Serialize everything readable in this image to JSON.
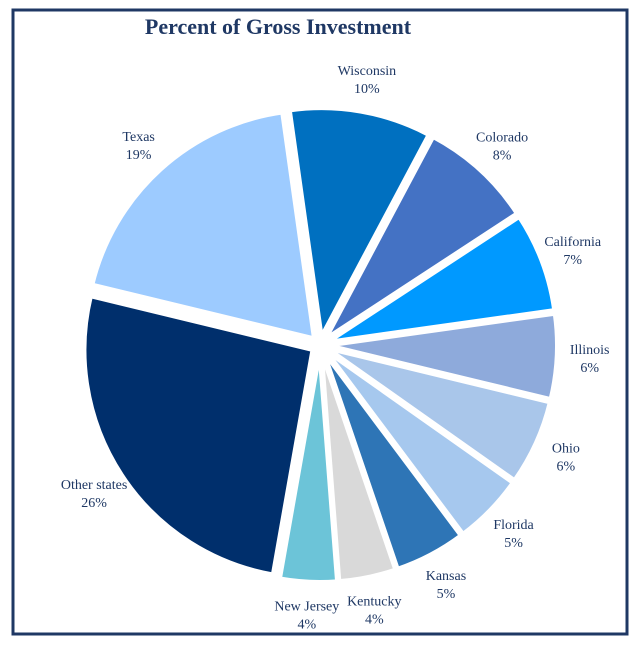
{
  "chart_data": {
    "type": "pie",
    "title": "Percent of Gross Investment",
    "categories": [
      "Wisconsin",
      "Colorado",
      "California",
      "Illinois",
      "Ohio",
      "Florida",
      "Kansas",
      "Kentucky",
      "New Jersey",
      "Other states",
      "Texas"
    ],
    "values": [
      10,
      8,
      7,
      6,
      6,
      5,
      5,
      4,
      4,
      26,
      19
    ],
    "value_labels": [
      "10%",
      "8%",
      "7%",
      "6%",
      "6%",
      "5%",
      "5%",
      "4%",
      "4%",
      "26%",
      "19%"
    ],
    "colors": [
      "#0070c0",
      "#4472c4",
      "#0099ff",
      "#8eaadb",
      "#a9c6ea",
      "#a6c8ee",
      "#2e75b6",
      "#d9d9d9",
      "#6cc4d8",
      "#002f6c",
      "#9dcbff"
    ]
  }
}
